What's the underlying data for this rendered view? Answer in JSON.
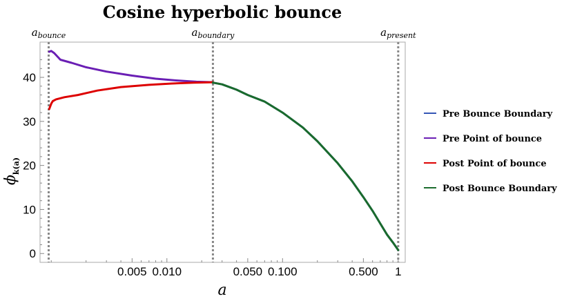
{
  "chart_data": {
    "type": "line",
    "title": "Cosine hyperbolic bounce",
    "xlabel": "a",
    "ylabel": "ϕ",
    "ylabel_sub": "k(a)",
    "xscale": "log",
    "xlim": [
      0.0008,
      1.15
    ],
    "ylim": [
      -2,
      48
    ],
    "x_ticks": [
      0.005,
      0.01,
      0.05,
      0.1,
      0.5,
      1
    ],
    "x_tick_labels": [
      "0.005",
      "0.010",
      "0.050",
      "0.100",
      "0.500",
      "1"
    ],
    "y_ticks": [
      0,
      10,
      20,
      30,
      40
    ],
    "y_tick_labels": [
      "0",
      "10",
      "20",
      "30",
      "40"
    ],
    "grid": false,
    "legend_position": "right",
    "vertical_lines": [
      {
        "x": 0.00095,
        "base": "a",
        "sub": "bounce"
      },
      {
        "x": 0.025,
        "base": "a",
        "sub": "boundary"
      },
      {
        "x": 1,
        "base": "a",
        "sub": "present"
      }
    ],
    "series": [
      {
        "name": "Pre Bounce Boundary",
        "color": "#3355b5",
        "x": [
          0.025,
          0.03,
          0.04,
          0.05,
          0.07,
          0.1,
          0.15,
          0.2,
          0.3,
          0.4,
          0.5,
          0.6,
          0.7,
          0.8,
          0.9,
          1
        ],
        "y": [
          38.8,
          38.4,
          37.2,
          36.0,
          34.5,
          32.0,
          28.6,
          25.5,
          20.5,
          16.4,
          12.8,
          9.7,
          6.8,
          4.3,
          2.5,
          0.8
        ]
      },
      {
        "name": "Pre Point of bounce",
        "color": "#6a1eb4",
        "x": [
          0.00096,
          0.001,
          0.00106,
          0.0012,
          0.0015,
          0.002,
          0.003,
          0.005,
          0.008,
          0.012,
          0.018,
          0.025
        ],
        "y": [
          45.8,
          46.0,
          45.5,
          44.0,
          43.3,
          42.3,
          41.3,
          40.4,
          39.7,
          39.3,
          39.0,
          38.9
        ]
      },
      {
        "name": "Post Point of bounce",
        "color": "#dd0000",
        "x": [
          0.00096,
          0.001,
          0.00103,
          0.0011,
          0.0013,
          0.0017,
          0.0025,
          0.004,
          0.007,
          0.011,
          0.017,
          0.025
        ],
        "y": [
          32.8,
          34.0,
          34.6,
          35.0,
          35.5,
          36.0,
          37.0,
          37.8,
          38.3,
          38.6,
          38.8,
          38.9
        ]
      },
      {
        "name": "Post Bounce Boundary",
        "color": "#1a6b2c",
        "x": [
          0.025,
          0.03,
          0.04,
          0.05,
          0.07,
          0.1,
          0.15,
          0.2,
          0.3,
          0.4,
          0.5,
          0.6,
          0.7,
          0.8,
          0.9,
          1
        ],
        "y": [
          38.8,
          38.4,
          37.2,
          36.0,
          34.5,
          32.0,
          28.6,
          25.5,
          20.5,
          16.4,
          12.8,
          9.7,
          6.8,
          4.3,
          2.5,
          0.8
        ]
      }
    ]
  }
}
